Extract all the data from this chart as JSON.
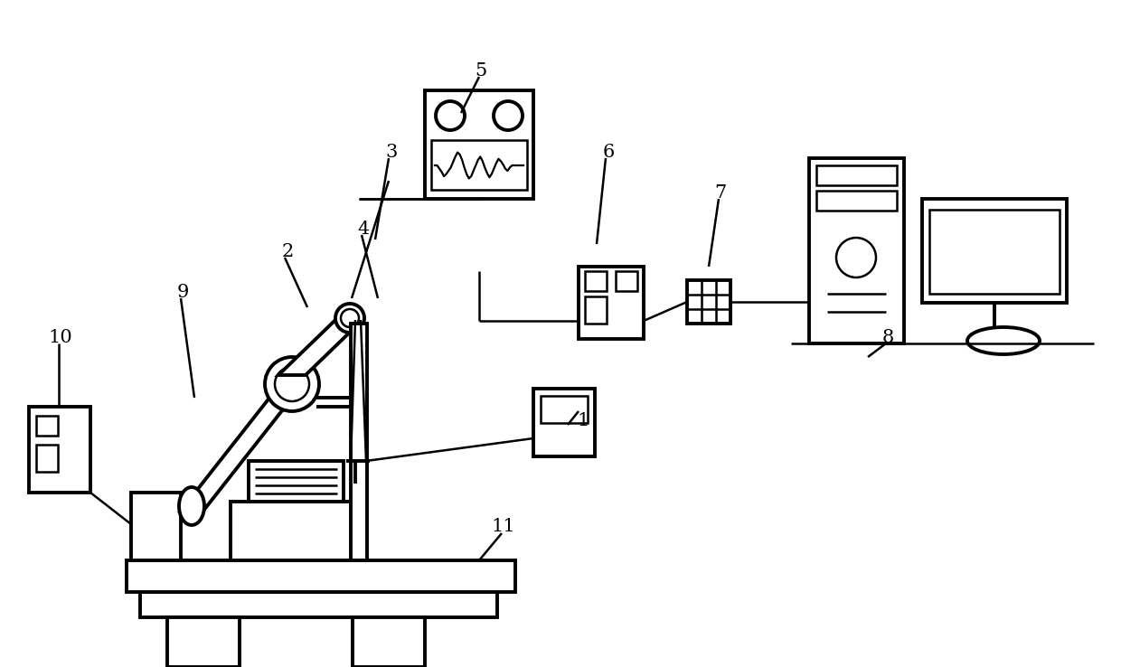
{
  "bg_color": "#ffffff",
  "line_color": "#000000",
  "lw": 1.8,
  "lw2": 2.8,
  "font_size": 15
}
